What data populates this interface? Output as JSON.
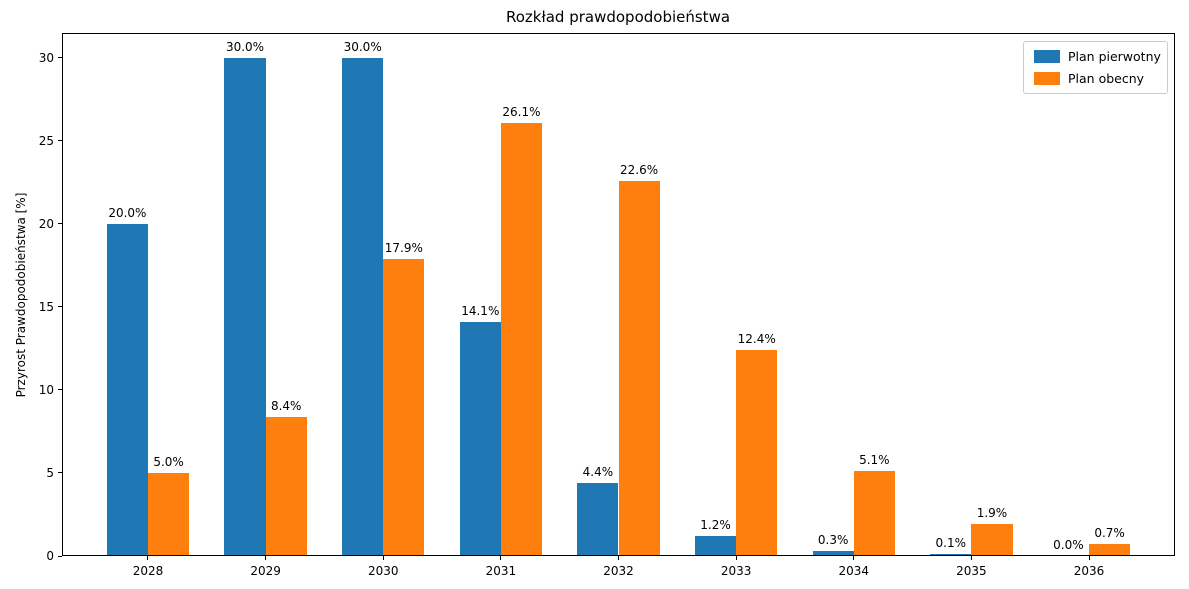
{
  "chart_data": {
    "type": "bar",
    "title": "Rozkład prawdopodobieństwa",
    "xlabel": "",
    "ylabel": "Przyrost Prawdopodobieństwa [%]",
    "categories": [
      "2028",
      "2029",
      "2030",
      "2031",
      "2032",
      "2033",
      "2034",
      "2035",
      "2036"
    ],
    "series": [
      {
        "name": "Plan pierwotny",
        "color": "#1f77b4",
        "values": [
          20.0,
          30.0,
          30.0,
          14.1,
          4.4,
          1.2,
          0.3,
          0.1,
          0.0
        ],
        "labels": [
          "20.0%",
          "30.0%",
          "30.0%",
          "14.1%",
          "4.4%",
          "1.2%",
          "0.3%",
          "0.1%",
          "0.0%"
        ]
      },
      {
        "name": "Plan obecny",
        "color": "#ff7f0e",
        "values": [
          5.0,
          8.4,
          17.9,
          26.1,
          22.6,
          12.4,
          5.1,
          1.9,
          0.7
        ],
        "labels": [
          "5.0%",
          "8.4%",
          "17.9%",
          "26.1%",
          "22.6%",
          "12.4%",
          "5.1%",
          "1.9%",
          "0.7%"
        ]
      }
    ],
    "yticks": [
      0,
      5,
      10,
      15,
      20,
      25,
      30
    ],
    "ytick_labels": [
      "0",
      "5",
      "10",
      "15",
      "20",
      "25",
      "30"
    ],
    "ylim": [
      0,
      31.5
    ],
    "legend_position": "upper right",
    "grid": false
  }
}
